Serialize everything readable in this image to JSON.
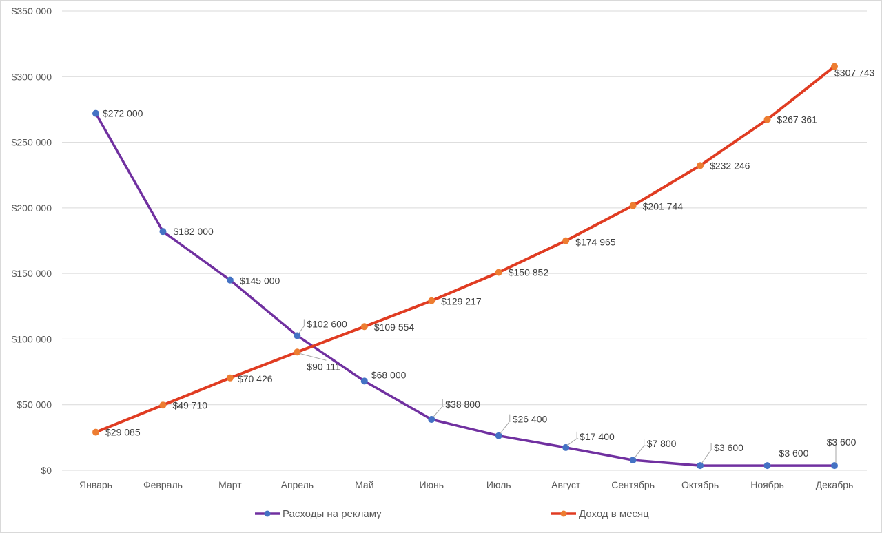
{
  "chart_data": {
    "type": "line",
    "title": "",
    "xlabel": "",
    "ylabel": "",
    "ylim": [
      0,
      350000
    ],
    "y_ticks": [
      0,
      50000,
      100000,
      150000,
      200000,
      250000,
      300000,
      350000
    ],
    "y_tick_labels": [
      "$0",
      "$50 000",
      "$100 000",
      "$150 000",
      "$200 000",
      "$250 000",
      "$300 000",
      "$350 000"
    ],
    "grid": true,
    "legend_position": "bottom",
    "categories": [
      "Январь",
      "Февраль",
      "Март",
      "Апрель",
      "Май",
      "Июнь",
      "Июль",
      "Август",
      "Сентябрь",
      "Октябрь",
      "Ноябрь",
      "Декабрь"
    ],
    "series": [
      {
        "name": "Расходы на рекламу",
        "color": "#7030a0",
        "marker_color": "#4472c4",
        "values": [
          272000,
          182000,
          145000,
          102600,
          68000,
          38800,
          26400,
          17400,
          7800,
          3600,
          3600,
          3600
        ],
        "labels": [
          "$272 000",
          "$182 000",
          "$145 000",
          "$102 600",
          "$68 000",
          "$38 800",
          "$26 400",
          "$17 400",
          "$7 800",
          "$3 600",
          "$3 600",
          "$3 600"
        ]
      },
      {
        "name": "Доход в месяц",
        "color": "#e03c22",
        "marker_color": "#ed7d31",
        "values": [
          29085,
          49710,
          70426,
          90111,
          109554,
          129217,
          150852,
          174965,
          201744,
          232246,
          267361,
          307743
        ],
        "labels": [
          "$29 085",
          "$49 710",
          "$70 426",
          "$90 111",
          "$109 554",
          "$129 217",
          "$150 852",
          "$174 965",
          "$201 744",
          "$232 246",
          "$267 361",
          "$307 743"
        ]
      }
    ]
  }
}
